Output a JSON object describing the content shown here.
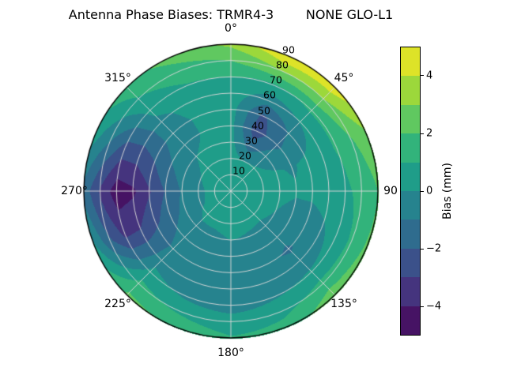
{
  "title": "Antenna Phase Biases: TRMR4-3        NONE GLO-L1",
  "chart_data": {
    "type": "polar_contour",
    "title": "Antenna Phase Biases: TRMR4-3        NONE GLO-L1",
    "theta_convention": "azimuth degrees, 0 at top, clockwise",
    "theta_labels": [
      "0°",
      "45°",
      "90",
      "135°",
      "180°",
      "225°",
      "270°",
      "315°"
    ],
    "radial_tick_labels": [
      "10",
      "20",
      "30",
      "40",
      "50",
      "60",
      "70",
      "80",
      "90"
    ],
    "radial_range": [
      0,
      90
    ],
    "grid": true,
    "legend_position": "right-colorbar",
    "colormap": [
      "#440154",
      "#482878",
      "#3e4989",
      "#31688e",
      "#26828e",
      "#1f9e89",
      "#35b779",
      "#6ece58",
      "#b5de2b",
      "#fde725"
    ],
    "colorbar": {
      "label": "Bias (mm)",
      "ticks": [
        "4",
        "2",
        "0",
        "−2",
        "−4"
      ],
      "tick_values": [
        4,
        2,
        0,
        -2,
        -4
      ],
      "vmin": -5,
      "vmax": 5,
      "levels": 10
    },
    "azimuth_deg": [
      0,
      22.5,
      45,
      67.5,
      90,
      112.5,
      135,
      157.5,
      180,
      202.5,
      225,
      247.5,
      270,
      292.5,
      315,
      337.5
    ],
    "zenith_deg": [
      0,
      10,
      20,
      30,
      40,
      50,
      60,
      70,
      80,
      90
    ],
    "bias_grid_mm": [
      [
        0.5,
        0.5,
        0.4,
        0.3,
        0.3,
        0.4,
        0.6,
        1.0,
        2.0,
        3.2
      ],
      [
        0.5,
        0.4,
        0.0,
        -1.5,
        -2.6,
        -2.2,
        -0.6,
        0.8,
        3.0,
        5.0
      ],
      [
        0.5,
        0.4,
        0.1,
        -0.6,
        -1.2,
        -0.9,
        0.1,
        1.2,
        3.0,
        4.7
      ],
      [
        0.5,
        0.5,
        0.3,
        0.1,
        -0.1,
        0.2,
        0.6,
        1.1,
        1.9,
        2.8
      ],
      [
        0.5,
        0.4,
        0.3,
        0.2,
        0.1,
        0.2,
        0.4,
        0.8,
        1.3,
        2.0
      ],
      [
        0.5,
        0.4,
        0.3,
        0.0,
        -0.3,
        -0.4,
        -0.1,
        0.4,
        1.2,
        2.2
      ],
      [
        0.5,
        0.4,
        0.2,
        -0.2,
        -0.8,
        -1.1,
        -0.7,
        0.2,
        1.4,
        2.7
      ],
      [
        0.5,
        0.4,
        0.2,
        -0.1,
        -0.5,
        -0.8,
        -0.6,
        -0.1,
        0.7,
        1.4
      ],
      [
        0.5,
        0.4,
        0.3,
        0.0,
        -0.4,
        -0.7,
        -0.8,
        -0.4,
        0.4,
        1.1
      ],
      [
        0.5,
        0.4,
        0.2,
        -0.2,
        -0.7,
        -1.0,
        -0.8,
        -0.2,
        0.8,
        1.9
      ],
      [
        0.5,
        0.4,
        0.2,
        -0.2,
        -0.6,
        -0.8,
        -0.4,
        0.3,
        1.3,
        2.2
      ],
      [
        0.5,
        0.3,
        -0.1,
        -0.7,
        -1.4,
        -2.2,
        -3.0,
        -3.2,
        -1.8,
        0.2
      ],
      [
        0.5,
        0.3,
        -0.2,
        -0.9,
        -1.9,
        -3.1,
        -4.2,
        -4.6,
        -3.2,
        -1.4
      ],
      [
        0.5,
        0.3,
        0.0,
        -0.5,
        -1.1,
        -1.9,
        -2.5,
        -2.4,
        -1.0,
        0.4
      ],
      [
        0.5,
        0.4,
        0.2,
        0.0,
        -0.3,
        -0.5,
        -0.3,
        0.3,
        0.9,
        1.6
      ],
      [
        0.5,
        0.5,
        0.4,
        0.2,
        0.1,
        0.2,
        0.5,
        0.9,
        1.6,
        2.4
      ]
    ]
  }
}
